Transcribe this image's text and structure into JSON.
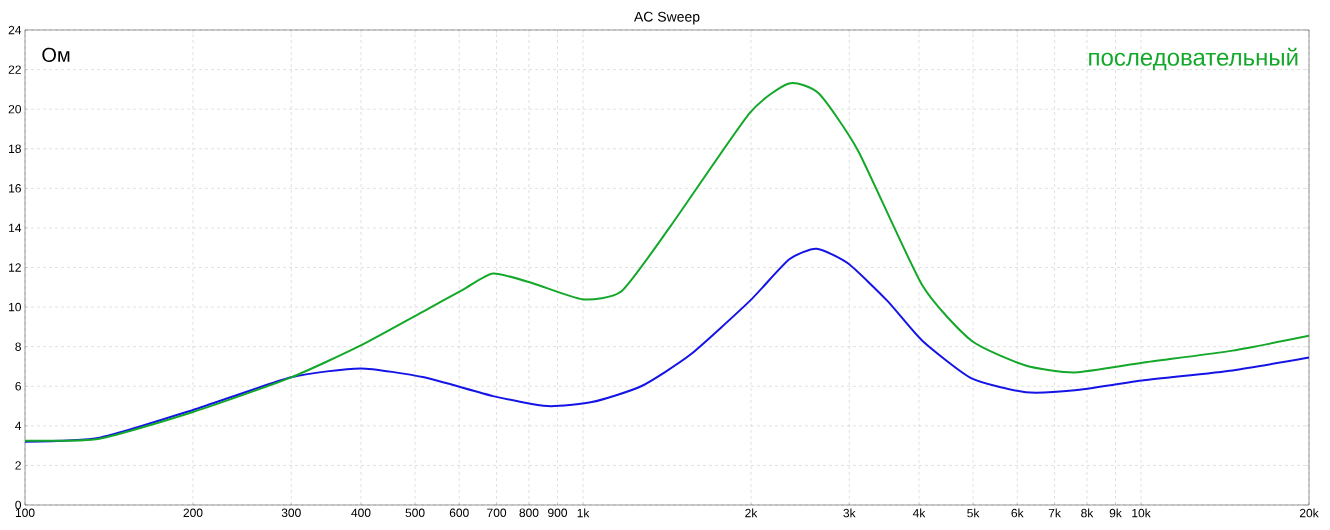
{
  "chart_data": {
    "type": "line",
    "title": "AC Sweep",
    "ylabel": "Ом",
    "log": "x",
    "grid": true,
    "legend": "top right",
    "line_style": "solid",
    "marker": "none",
    "xlim": [
      100,
      20000
    ],
    "ylim": [
      0,
      24
    ],
    "xticks": [
      100,
      200,
      300,
      400,
      500,
      600,
      700,
      800,
      900,
      {
        "value": 1000,
        "label": "1k"
      },
      {
        "value": 2000,
        "label": "2k"
      },
      {
        "value": 3000,
        "label": "3k"
      },
      {
        "value": 4000,
        "label": "4k"
      },
      {
        "value": 5000,
        "label": "5k"
      },
      {
        "value": 6000,
        "label": "6k"
      },
      {
        "value": 7000,
        "label": "7k"
      },
      {
        "value": 8000,
        "label": "8k"
      },
      {
        "value": 9000,
        "label": "9k"
      },
      {
        "value": 10000,
        "label": "10k"
      },
      {
        "value": 20000,
        "label": "20k"
      }
    ],
    "yticks": [
      0,
      2,
      4,
      6,
      8,
      10,
      12,
      14,
      16,
      18,
      20,
      22,
      24
    ],
    "series": [
      {
        "color": "#1414e6",
        "x": [
          100,
          136,
          200,
          300,
          399,
          519,
          690,
          864,
          1037,
          1271,
          1558,
          1989,
          2339,
          2622,
          2987,
          3515,
          4055,
          4969,
          6214,
          7613,
          10120,
          14590,
          20000
        ],
        "values": [
          3.2,
          3.4,
          4.8,
          6.45,
          6.9,
          6.45,
          5.5,
          5.0,
          5.2,
          6.0,
          7.6,
          10.3,
          12.4,
          12.95,
          12.2,
          10.3,
          8.3,
          6.4,
          5.7,
          5.8,
          6.3,
          6.8,
          7.45
        ]
      },
      {
        "name": "последовательный",
        "color": "#14a82a",
        "x": [
          100,
          136,
          200,
          300,
          399,
          519,
          611,
          690,
          813,
          996,
          1172,
          1436,
          1989,
          2339,
          2644,
          3111,
          4055,
          4969,
          6214,
          7613,
          10120,
          14590,
          20000
        ],
        "values": [
          3.25,
          3.35,
          4.7,
          6.45,
          8.05,
          9.8,
          10.9,
          11.7,
          11.2,
          10.4,
          10.8,
          14.1,
          19.8,
          21.3,
          20.8,
          17.9,
          11.1,
          8.3,
          7.05,
          6.7,
          7.2,
          7.8,
          8.55
        ]
      }
    ]
  }
}
